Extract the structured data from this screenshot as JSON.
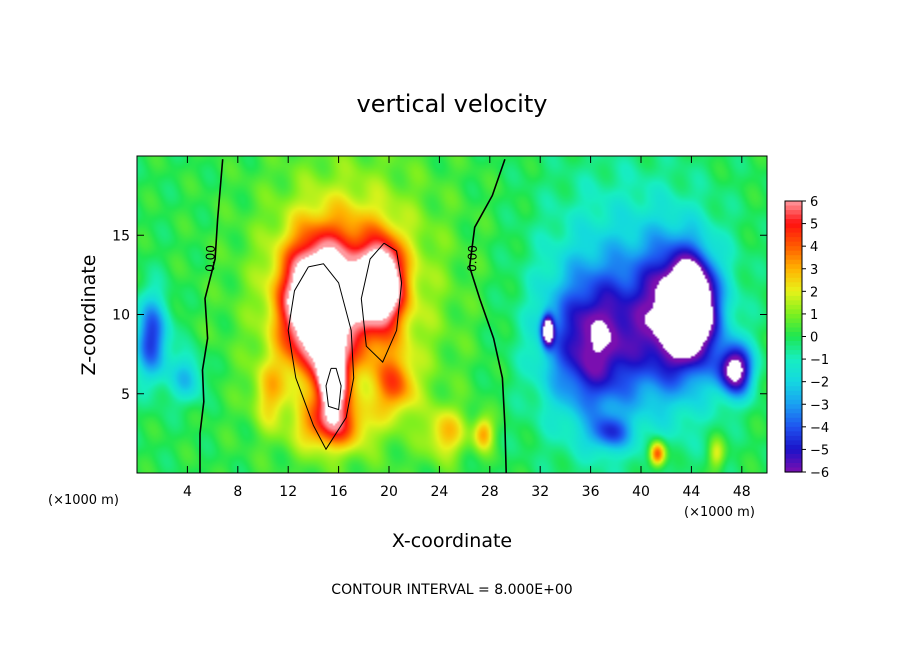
{
  "chart_data": {
    "type": "heatmap",
    "title": "vertical velocity",
    "xlabel": "X-coordinate",
    "ylabel": "Z-coordinate",
    "x_unit_label": "(×1000 m)",
    "x_unit_label_right": "(×1000 m)",
    "footer": "CONTOUR INTERVAL = 8.000E+00",
    "contour_label": "0.00",
    "xlim": [
      0,
      50
    ],
    "ylim": [
      0,
      20
    ],
    "x_ticks": [
      4,
      8,
      12,
      16,
      20,
      24,
      28,
      32,
      36,
      40,
      44,
      48
    ],
    "y_ticks": [
      5,
      10,
      15
    ],
    "colorbar": {
      "min": -6,
      "max": 6,
      "ticks": [
        6,
        5,
        4,
        3,
        2,
        1,
        0,
        -1,
        -2,
        -3,
        -4,
        -5,
        -6
      ],
      "tick_labels": [
        "6",
        "5",
        "4",
        "3",
        "2",
        "1",
        "0",
        "−1",
        "−2",
        "−3",
        "−4",
        "−5",
        "−6"
      ],
      "colors": [
        "#7a0fb0",
        "#1b12c8",
        "#1f54f0",
        "#1aa0f2",
        "#14d8e0",
        "#17eec0",
        "#1ee650",
        "#7ef01e",
        "#e8f21a",
        "#ffb200",
        "#ff5a00",
        "#ff1010",
        "#ff9aa0"
      ],
      "beyond_range_color": "#ffffff"
    },
    "features": [
      {
        "x": 14,
        "z": 10.5,
        "w": 4.6,
        "h": 7.0,
        "value": 7
      },
      {
        "x": 19.5,
        "z": 12.0,
        "w": 2.8,
        "h": 4.5,
        "value": 7
      },
      {
        "x": 15.5,
        "z": 5.8,
        "w": 2.0,
        "h": 3.8,
        "value": 8
      },
      {
        "x": 16.5,
        "z": 11.5,
        "w": 8.0,
        "h": 8.5,
        "value": 4.5
      },
      {
        "x": 15.5,
        "z": 3.0,
        "w": 5.0,
        "h": 3.0,
        "value": 4
      },
      {
        "x": 20.5,
        "z": 5.5,
        "w": 3.0,
        "h": 3.5,
        "value": 3
      },
      {
        "x": 24.5,
        "z": 2.5,
        "w": 3.0,
        "h": 3.0,
        "value": 2.5
      },
      {
        "x": 27.5,
        "z": 2.5,
        "w": 1.5,
        "h": 2.0,
        "value": 3
      },
      {
        "x": 10.5,
        "z": 5.0,
        "w": 2.5,
        "h": 4.0,
        "value": 2
      },
      {
        "x": 17,
        "z": 11,
        "w": 16,
        "h": 18,
        "value": 1.6
      },
      {
        "x": 1.2,
        "z": 8.5,
        "w": 2.5,
        "h": 5.0,
        "value": -4.5
      },
      {
        "x": 4,
        "z": 6,
        "w": 2.5,
        "h": 3.0,
        "value": -2.5
      },
      {
        "x": 36,
        "z": 8,
        "w": 6.5,
        "h": 8.0,
        "value": -4.2
      },
      {
        "x": 43,
        "z": 10,
        "w": 6.0,
        "h": 8.5,
        "value": -5.5
      },
      {
        "x": 44,
        "z": 10.5,
        "w": 3.2,
        "h": 5.0,
        "value": -7.5
      },
      {
        "x": 47.5,
        "z": 6.5,
        "w": 2.5,
        "h": 3.0,
        "value": -7
      },
      {
        "x": 32.6,
        "z": 9,
        "w": 0.9,
        "h": 1.8,
        "value": -7
      },
      {
        "x": 38.5,
        "z": 10,
        "w": 12,
        "h": 14,
        "value": -2.8
      },
      {
        "x": 41.3,
        "z": 1.2,
        "w": 1.2,
        "h": 1.5,
        "value": 5
      },
      {
        "x": 46,
        "z": 1.2,
        "w": 1.2,
        "h": 1.8,
        "value": 2
      },
      {
        "x": 37.5,
        "z": 2.5,
        "w": 3.0,
        "h": 2.0,
        "value": -3
      }
    ],
    "zero_contours": [
      [
        [
          5.0,
          0
        ],
        [
          5.0,
          2.5
        ],
        [
          5.3,
          4.5
        ],
        [
          5.2,
          6.5
        ],
        [
          5.6,
          8.5
        ],
        [
          5.4,
          11
        ],
        [
          6.2,
          13.5
        ],
        [
          6.4,
          16
        ],
        [
          6.8,
          19.8
        ]
      ],
      [
        [
          29.3,
          0
        ],
        [
          29.2,
          3
        ],
        [
          29.0,
          6
        ],
        [
          28.3,
          8.5
        ],
        [
          27.2,
          11
        ],
        [
          26.4,
          13
        ],
        [
          26.8,
          15.5
        ],
        [
          28.2,
          17.5
        ],
        [
          29.2,
          19.8
        ]
      ]
    ],
    "inner_contours": [
      [
        [
          13.6,
          13.0
        ],
        [
          12.5,
          11.5
        ],
        [
          12.0,
          9.0
        ],
        [
          12.6,
          6.0
        ],
        [
          14.0,
          3.0
        ],
        [
          15.0,
          1.5
        ],
        [
          16.6,
          3.5
        ],
        [
          17.2,
          6.0
        ],
        [
          17.0,
          9.0
        ],
        [
          16.0,
          12.0
        ],
        [
          14.8,
          13.2
        ],
        [
          13.6,
          13.0
        ]
      ],
      [
        [
          19.6,
          14.5
        ],
        [
          18.5,
          13.5
        ],
        [
          17.8,
          11.0
        ],
        [
          18.2,
          8.0
        ],
        [
          19.5,
          7.0
        ],
        [
          20.6,
          9.0
        ],
        [
          21.0,
          12.0
        ],
        [
          20.6,
          14.0
        ],
        [
          19.6,
          14.5
        ]
      ],
      [
        [
          15.4,
          6.6
        ],
        [
          15.0,
          5.5
        ],
        [
          15.2,
          4.2
        ],
        [
          16.0,
          4.0
        ],
        [
          16.2,
          5.5
        ],
        [
          15.8,
          6.6
        ],
        [
          15.4,
          6.6
        ]
      ]
    ]
  }
}
